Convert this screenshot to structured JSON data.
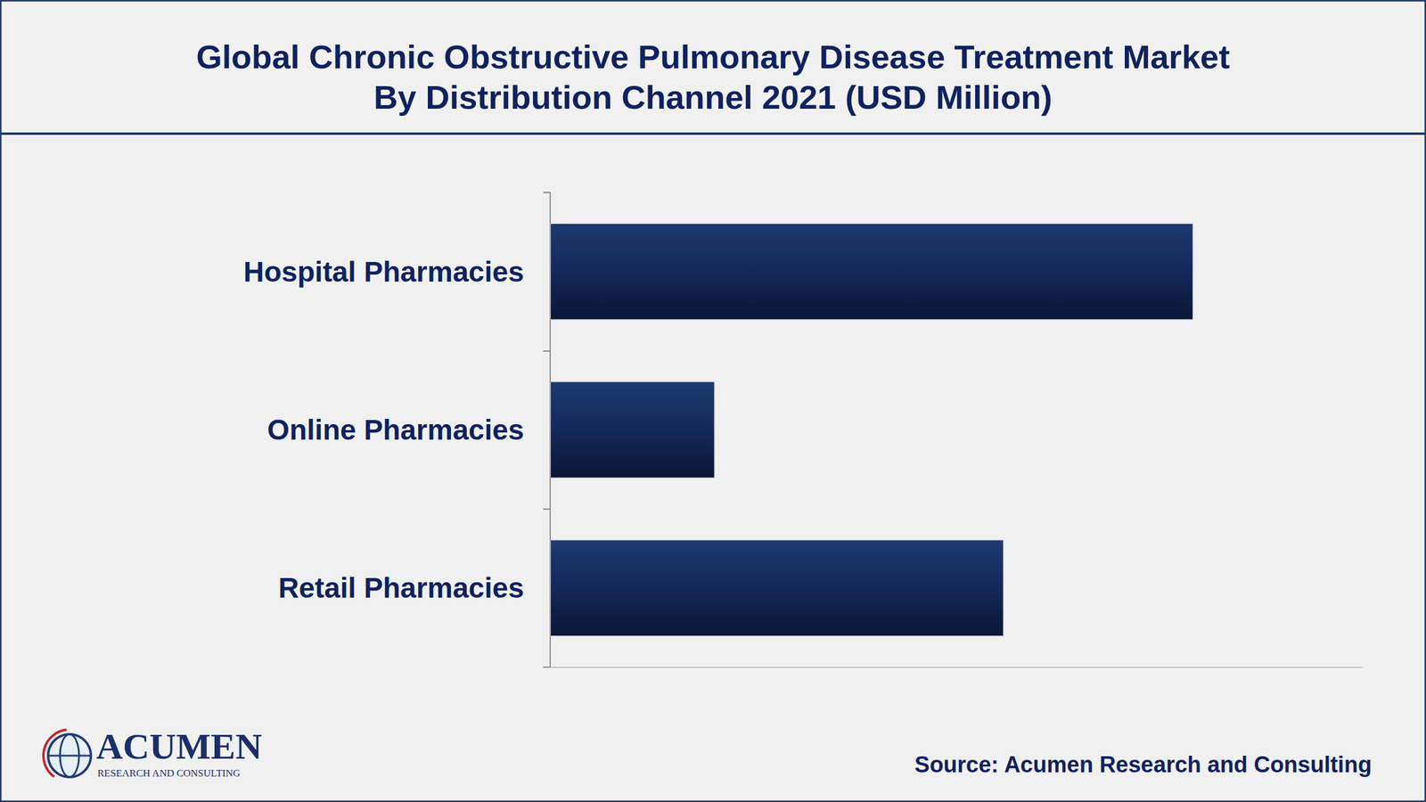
{
  "chart_data": {
    "type": "bar",
    "title": "Global Chronic Obstructive Pulmonary Disease Treatment Market\nBy Distribution Channel 2021 (USD Million)",
    "categories": [
      "Hospital Pharmacies",
      "Online Pharmacies",
      "Retail Pharmacies"
    ],
    "values": [
      9500,
      2430,
      6700
    ],
    "color": "#14285a",
    "orientation": "horizontal",
    "xlim": [
      0,
      12000
    ],
    "grid": false,
    "data_labels": false,
    "tick_labels": "y",
    "annotations": [
      "Source: Acumen Research and Consulting",
      "ACUMEN",
      "RESEARCH AND CONSULTING"
    ]
  }
}
